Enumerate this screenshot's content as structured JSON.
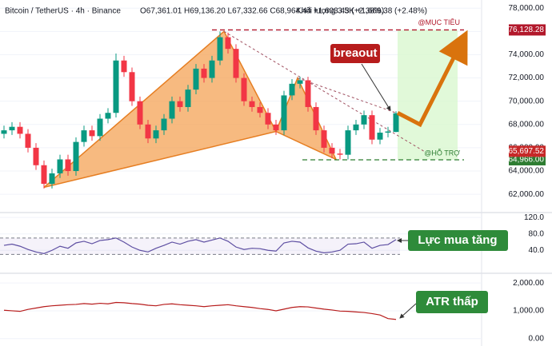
{
  "header": {
    "symbol": "Bitcoin / TetherUS · 4h · Binance",
    "ohlc": "O67,361.01 H69,136.20 L67,332.66 C68,964.44 +1,603.43 (+2.38%)",
    "volume": "Khối lượng 3.5K +1,669.38 (+2.48%)"
  },
  "chart_data": [
    {
      "type": "candlestick",
      "up_color": "#089981",
      "down_color": "#f23645",
      "xlim": [
        -0.5,
        59.5
      ],
      "ylim": [
        60500,
        78700
      ],
      "yticks": [
        {
          "value": 78000,
          "label": "78,000.00"
        },
        {
          "value": 76000,
          "label": "76,000.00"
        },
        {
          "value": 74000,
          "label": "74,000.00"
        },
        {
          "value": 72000,
          "label": "72,000.00"
        },
        {
          "value": 70000,
          "label": "70,000.00"
        },
        {
          "value": 68000,
          "label": "68,000.00"
        },
        {
          "value": 66000,
          "label": "66,000.00"
        },
        {
          "value": 64000,
          "label": "64,000.00"
        },
        {
          "value": 62000,
          "label": "62,000.00"
        }
      ],
      "open": [
        67200,
        67500,
        67800,
        67200,
        66000,
        64500,
        62900,
        63800,
        65000,
        64000,
        66500,
        67500,
        67000,
        68500,
        69000,
        73500,
        72500,
        70000,
        68000,
        66800,
        67500,
        68500,
        70000,
        69500,
        71000,
        72800,
        72000,
        73500,
        75500,
        74500,
        72000,
        70000,
        69500,
        69000,
        68000,
        67500,
        70500,
        71500,
        71800,
        69500,
        67500,
        66000,
        65500,
        65400,
        67500,
        68000,
        68800,
        66700,
        67300,
        67361.01
      ],
      "high": [
        67900,
        68200,
        68200,
        67600,
        66400,
        64900,
        64200,
        65400,
        65400,
        66900,
        67900,
        67900,
        68900,
        69400,
        74100,
        73900,
        72900,
        70400,
        68400,
        67900,
        68900,
        70400,
        70400,
        71400,
        73200,
        73200,
        73900,
        76000,
        75900,
        74900,
        72400,
        70400,
        69900,
        69400,
        68400,
        70900,
        71900,
        72100,
        72100,
        69900,
        67900,
        66400,
        65900,
        67900,
        68400,
        69200,
        69200,
        67700,
        67800,
        69136.2
      ],
      "low": [
        66800,
        67100,
        66800,
        65600,
        64100,
        62500,
        62500,
        63400,
        63600,
        63600,
        66100,
        66600,
        66600,
        68100,
        68600,
        72100,
        69600,
        67600,
        66400,
        66400,
        67100,
        68100,
        69100,
        69100,
        70600,
        71600,
        71600,
        73100,
        74100,
        71600,
        69600,
        69100,
        68600,
        67600,
        67100,
        67100,
        70100,
        71100,
        69100,
        67100,
        65600,
        65100,
        65000,
        65000,
        67100,
        67600,
        66300,
        66300,
        66900,
        67332.66
      ],
      "close": [
        67500,
        67800,
        67200,
        66000,
        64500,
        62900,
        63800,
        65000,
        64000,
        66500,
        67500,
        67000,
        68500,
        69000,
        73500,
        72500,
        70000,
        68000,
        66800,
        67500,
        68500,
        70000,
        69500,
        71000,
        72800,
        72000,
        73500,
        75500,
        74500,
        72000,
        70000,
        69500,
        69000,
        68000,
        67500,
        70500,
        71500,
        71800,
        69500,
        67500,
        66000,
        65500,
        65400,
        67500,
        68000,
        68800,
        66700,
        67300,
        67400,
        68964.44
      ],
      "pattern": {
        "color": "#f39c4a",
        "x": [
          5,
          27.5,
          34,
          36.7,
          41.5
        ],
        "y": [
          62600,
          76000,
          67400,
          72000,
          65000
        ]
      },
      "trendlines": [
        {
          "x": [
            27.5,
            52.5
          ],
          "y": [
            76000,
            65700
          ]
        },
        {
          "x": [
            36.7,
            49
          ],
          "y": [
            72000,
            69000
          ]
        }
      ],
      "target": {
        "value": 76128.28,
        "label": "76,128.28",
        "color": "#b2182b",
        "note": "@MỤC TIÊU"
      },
      "support": {
        "value": 64966.0,
        "label": "64,966.00",
        "color": "#2e7d32",
        "note": "@HỖ TRỢ"
      },
      "price_labels": [
        {
          "value": 65697.52,
          "label": "65,697.52",
          "color": "#c62828"
        }
      ],
      "zone": {
        "x": [
          49.2,
          56.7
        ],
        "color": "#d9f7d0"
      },
      "arrow": {
        "x": [
          49.2,
          52,
          57.5
        ],
        "y": [
          69000,
          68000,
          75500
        ],
        "color": "#d9730d"
      },
      "annotation": "breaout"
    },
    {
      "type": "line",
      "ylim": [
        -14,
        130
      ],
      "yticks": [
        {
          "value": 120,
          "label": "120.0"
        },
        {
          "value": 80,
          "label": "80.0"
        },
        {
          "value": 40,
          "label": "40.0"
        }
      ],
      "band": [
        30,
        70
      ],
      "series": [
        {
          "color": "#5e4fa2",
          "values": [
            52,
            55,
            50,
            42,
            36,
            32,
            40,
            50,
            45,
            58,
            62,
            56,
            64,
            66,
            70,
            60,
            48,
            40,
            36,
            45,
            52,
            60,
            55,
            62,
            66,
            60,
            65,
            70,
            62,
            48,
            42,
            45,
            44,
            40,
            38,
            58,
            62,
            60,
            46,
            38,
            34,
            36,
            40,
            55,
            56,
            60,
            45,
            52,
            54,
            66
          ]
        }
      ],
      "annotation": "Lực mua tăng"
    },
    {
      "type": "line",
      "ylim": [
        -265,
        2320
      ],
      "yticks": [
        {
          "value": 2000,
          "label": "2,000.00"
        },
        {
          "value": 1000,
          "label": "1,000.00"
        },
        {
          "value": 0,
          "label": "0.00"
        }
      ],
      "series": [
        {
          "color": "#b71c1c",
          "values": [
            1020,
            1000,
            980,
            1050,
            1100,
            1150,
            1180,
            1200,
            1220,
            1230,
            1260,
            1240,
            1270,
            1250,
            1300,
            1290,
            1260,
            1240,
            1200,
            1180,
            1230,
            1250,
            1220,
            1200,
            1180,
            1150,
            1180,
            1200,
            1220,
            1180,
            1150,
            1120,
            1080,
            1050,
            1000,
            1060,
            1120,
            1150,
            1140,
            1100,
            1060,
            1030,
            990,
            980,
            960,
            940,
            900,
            850,
            720,
            690
          ]
        }
      ],
      "annotation": "ATR thấp"
    }
  ]
}
